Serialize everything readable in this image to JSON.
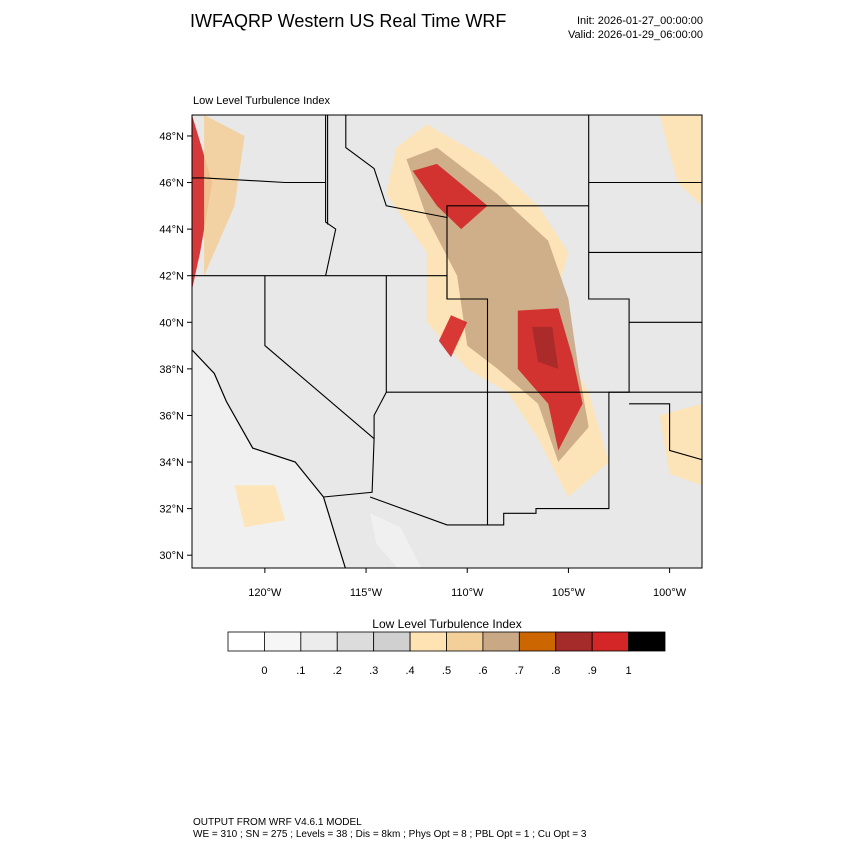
{
  "header": {
    "title": "IWFAQRP Western US Real Time WRF",
    "init": "Init: 2026-01-27_00:00:00",
    "valid": "Valid: 2026-01-29_06:00:00"
  },
  "map": {
    "title": "Low Level Turbulence Index",
    "lat_range": [
      29.45,
      48.9
    ],
    "lon_range": [
      -123.6,
      -98.4
    ],
    "lat_ticks": [
      {
        "value": 30,
        "label": "30°N"
      },
      {
        "value": 32,
        "label": "32°N"
      },
      {
        "value": 34,
        "label": "34°N"
      },
      {
        "value": 36,
        "label": "36°N"
      },
      {
        "value": 38,
        "label": "38°N"
      },
      {
        "value": 40,
        "label": "40°N"
      },
      {
        "value": 42,
        "label": "42°N"
      },
      {
        "value": 44,
        "label": "44°N"
      },
      {
        "value": 46,
        "label": "46°N"
      },
      {
        "value": 48,
        "label": "48°N"
      }
    ],
    "lon_ticks": [
      {
        "value": -120,
        "label": "120°W"
      },
      {
        "value": -115,
        "label": "115°W"
      },
      {
        "value": -110,
        "label": "110°W"
      },
      {
        "value": -105,
        "label": "105°W"
      },
      {
        "value": -100,
        "label": "100°W"
      }
    ]
  },
  "colorbar": {
    "title": "Low Level Turbulence Index",
    "levels": [
      0,
      {
        "value": 0.1,
        "label": ".1"
      },
      {
        "value": 0.2,
        "label": ".2"
      },
      {
        "value": 0.3,
        "label": ".3"
      },
      {
        "value": 0.4,
        "label": ".4"
      },
      {
        "value": 0.5,
        "label": ".5"
      },
      {
        "value": 0.6,
        "label": ".6"
      },
      {
        "value": 0.7,
        "label": ".7"
      },
      {
        "value": 0.8,
        "label": ".8"
      },
      {
        "value": 0.9,
        "label": ".9"
      },
      1
    ],
    "colors": [
      "#ffffff",
      "#f6f6f6",
      "#ececec",
      "#dcdcdc",
      "#d0d0d0",
      "#ffe3b3",
      "#f3cf9a",
      "#c9a985",
      "#cc6600",
      "#a52a2a",
      "#d42626",
      "#000000"
    ]
  },
  "footer": {
    "line1": "OUTPUT FROM WRF V4.6.1 MODEL",
    "line2": "WE = 310 ; SN = 275 ; Levels = 38 ; Dis = 8km ; Phys Opt = 8 ; PBL Opt = 1 ; Cu Opt = 3"
  }
}
